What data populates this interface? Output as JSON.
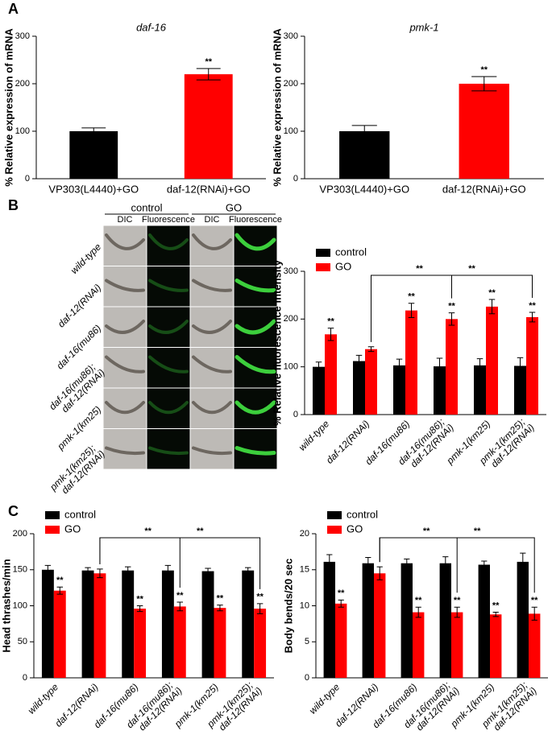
{
  "panel_labels": [
    "A",
    "B",
    "C"
  ],
  "image_grid": {
    "groups": [
      "control",
      "GO"
    ],
    "columns": [
      "DIC",
      "Fluorescence",
      "DIC",
      "Fluorescence"
    ],
    "rows": [
      "wild-type",
      "daf-12(RNAi)",
      "daf-16(mu86)",
      "daf-16(mu86); daf-12(RNAi)",
      "pmk-1(km25)",
      "pmk-1(km25); daf-12(RNAi)"
    ]
  },
  "chart_data": [
    {
      "type": "bar",
      "title": "daf-16",
      "ylabel": "% Relative expression of mRNA",
      "categories": [
        "VP303(L4440)+GO",
        "daf-12(RNAi)+GO"
      ],
      "values": [
        100,
        220
      ],
      "errors": [
        7,
        12
      ],
      "colors": [
        "#000000",
        "#ff0000"
      ],
      "annotations": [
        null,
        "**"
      ],
      "ylim": [
        0,
        300
      ],
      "yticks": [
        0,
        100,
        200,
        300
      ]
    },
    {
      "type": "bar",
      "title": "pmk-1",
      "ylabel": "% Relative expression of mRNA",
      "categories": [
        "VP303(L4440)+GO",
        "daf-12(RNAi)+GO"
      ],
      "values": [
        100,
        200
      ],
      "errors": [
        12,
        15
      ],
      "colors": [
        "#000000",
        "#ff0000"
      ],
      "annotations": [
        null,
        "**"
      ],
      "ylim": [
        0,
        300
      ],
      "yticks": [
        0,
        100,
        200,
        300
      ]
    },
    {
      "type": "bar",
      "ylabel": "% Relative fluorescence intensity",
      "categories": [
        "wild-type",
        "daf-12(RNAi)",
        "daf-16(mu86)",
        "daf-16(mu86); daf-12(RNAi)",
        "pmk-1(km25)",
        "pmk-1(km25); daf-12(RNAi)"
      ],
      "series": [
        {
          "name": "control",
          "color": "#000000",
          "values": [
            100,
            112,
            103,
            101,
            103,
            102
          ],
          "errors": [
            10,
            12,
            13,
            17,
            14,
            17
          ],
          "annotations": [
            null,
            null,
            null,
            null,
            null,
            null
          ]
        },
        {
          "name": "GO",
          "color": "#ff0000",
          "values": [
            168,
            137,
            218,
            200,
            226,
            204
          ],
          "errors": [
            13,
            5,
            15,
            13,
            15,
            10
          ],
          "annotations": [
            "**",
            null,
            "**",
            "**",
            "**",
            "**"
          ]
        }
      ],
      "brackets": [
        {
          "from": 1,
          "to": 3,
          "label": "**"
        },
        {
          "from": 1,
          "to": 5,
          "label": "**"
        }
      ],
      "ylim": [
        0,
        300
      ],
      "yticks": [
        0,
        100,
        200,
        300
      ]
    },
    {
      "type": "bar",
      "ylabel": "Head thrashes/min",
      "categories": [
        "wild-type",
        "daf-12(RNAi)",
        "daf-16(mu86)",
        "daf-16(mu86); daf-12(RNAi)",
        "pmk-1(km25)",
        "pmk-1(km25); daf-12(RNAi)"
      ],
      "series": [
        {
          "name": "control",
          "color": "#000000",
          "values": [
            150,
            149,
            149,
            149,
            148,
            149
          ],
          "errors": [
            6,
            4,
            5,
            7,
            4,
            4
          ],
          "annotations": [
            null,
            null,
            null,
            null,
            null,
            null
          ]
        },
        {
          "name": "GO",
          "color": "#ff0000",
          "values": [
            121,
            145,
            96,
            99,
            97,
            96
          ],
          "errors": [
            5,
            6,
            4,
            6,
            4,
            7
          ],
          "annotations": [
            "**",
            null,
            "**",
            "**",
            "**",
            "**"
          ]
        }
      ],
      "brackets": [
        {
          "from": 1,
          "to": 3,
          "label": "**"
        },
        {
          "from": 1,
          "to": 5,
          "label": "**"
        }
      ],
      "ylim": [
        0,
        200
      ],
      "yticks": [
        0,
        50,
        100,
        150,
        200
      ]
    },
    {
      "type": "bar",
      "ylabel": "Body bends/20 sec",
      "categories": [
        "wild-type",
        "daf-12(RNAi)",
        "daf-16(mu86)",
        "daf-16(mu86); daf-12(RNAi)",
        "pmk-1(km25)",
        "pmk-1(km25); daf-12(RNAi)"
      ],
      "series": [
        {
          "name": "control",
          "color": "#000000",
          "values": [
            16.1,
            15.9,
            15.9,
            15.9,
            15.7,
            16.1
          ],
          "errors": [
            1.0,
            0.8,
            0.6,
            0.9,
            0.5,
            1.2
          ],
          "annotations": [
            null,
            null,
            null,
            null,
            null,
            null
          ]
        },
        {
          "name": "GO",
          "color": "#ff0000",
          "values": [
            10.3,
            14.5,
            9.1,
            9.1,
            8.8,
            8.9
          ],
          "errors": [
            0.5,
            0.9,
            0.7,
            0.7,
            0.3,
            0.9
          ],
          "annotations": [
            "**",
            null,
            "**",
            "**",
            "**",
            "**"
          ]
        }
      ],
      "brackets": [
        {
          "from": 1,
          "to": 3,
          "label": "**"
        },
        {
          "from": 1,
          "to": 5,
          "label": "**"
        }
      ],
      "ylim": [
        0,
        20
      ],
      "yticks": [
        0,
        5,
        10,
        15,
        20
      ]
    }
  ]
}
